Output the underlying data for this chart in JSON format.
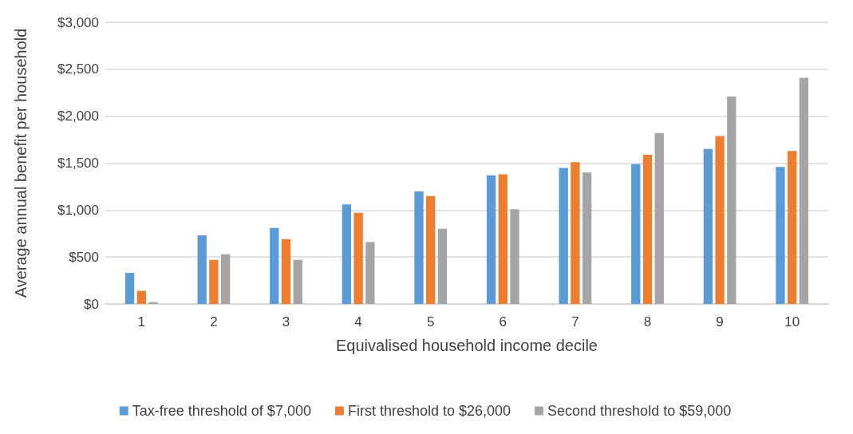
{
  "chart_data": {
    "type": "bar",
    "xlabel": "Equivalised household income decile",
    "ylabel": "Average annual benefit per household",
    "categories": [
      "1",
      "2",
      "3",
      "4",
      "5",
      "6",
      "7",
      "8",
      "9",
      "10"
    ],
    "series": [
      {
        "name": "Tax-free threshold of $7,000",
        "color": "#5b9bd5",
        "values": [
          330,
          730,
          810,
          1060,
          1200,
          1370,
          1450,
          1490,
          1650,
          1460
        ]
      },
      {
        "name": "First threshold to $26,000",
        "color": "#ed7d31",
        "values": [
          140,
          470,
          690,
          970,
          1150,
          1380,
          1510,
          1590,
          1790,
          1630
        ]
      },
      {
        "name": "Second threshold to $59,000",
        "color": "#a5a5a5",
        "values": [
          20,
          530,
          470,
          660,
          800,
          1010,
          1400,
          1820,
          2210,
          2410
        ]
      }
    ],
    "ylim": [
      0,
      3000
    ],
    "yticks": [
      {
        "value": 0,
        "label": "$0"
      },
      {
        "value": 500,
        "label": "$500"
      },
      {
        "value": 1000,
        "label": "$1,000"
      },
      {
        "value": 1500,
        "label": "$1,500"
      },
      {
        "value": 2000,
        "label": "$2,000"
      },
      {
        "value": 2500,
        "label": "$2,500"
      },
      {
        "value": 3000,
        "label": "$3,000"
      }
    ],
    "grid": "y",
    "legend": "bottom"
  }
}
